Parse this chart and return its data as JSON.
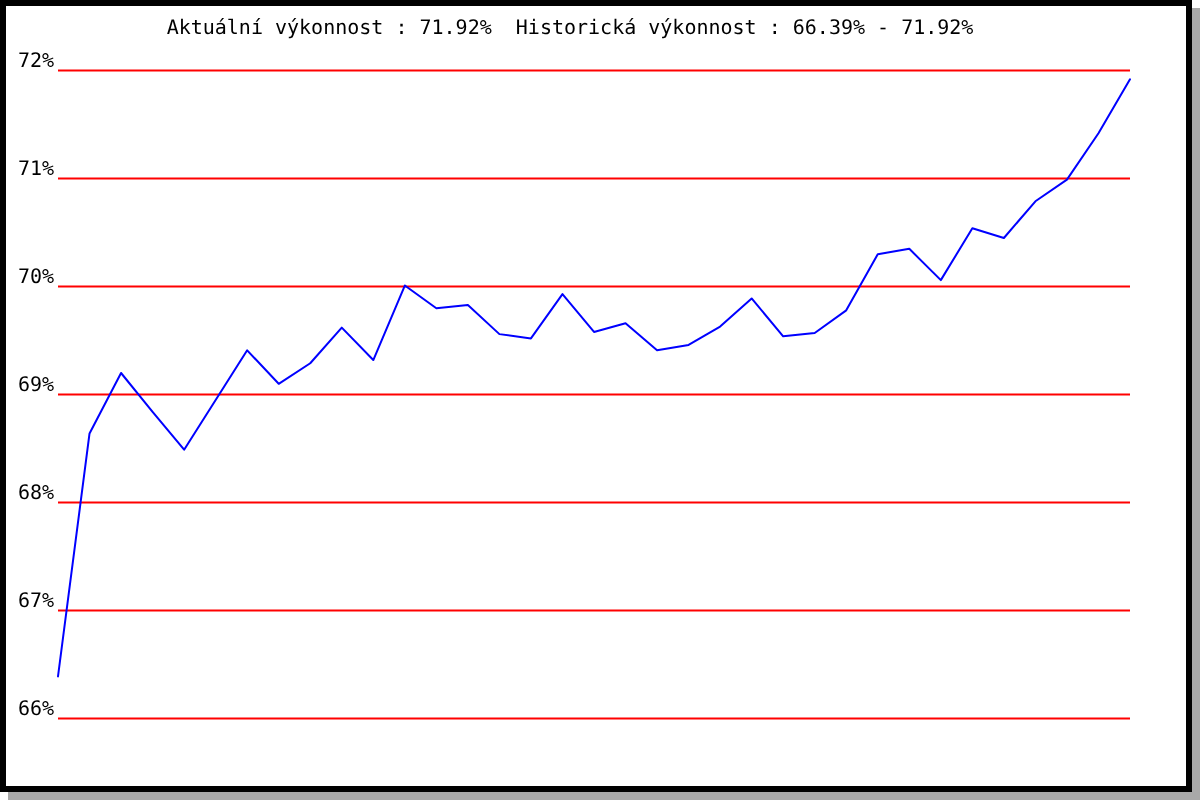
{
  "chart_data": {
    "type": "line",
    "title": "Aktuální výkonnost : 71.92%  Historická výkonnost : 66.39% - 71.92%",
    "categories": [
      null,
      null,
      null,
      null,
      null,
      null,
      null,
      null,
      null,
      null,
      null,
      null,
      null,
      null,
      null,
      null,
      null,
      null,
      null,
      null,
      null,
      null,
      null,
      null,
      null,
      null,
      null,
      null,
      null,
      null,
      null,
      null,
      null,
      null,
      null
    ],
    "series": [
      {
        "color": "#0000ff",
        "values": [
          66.39,
          68.64,
          69.2,
          68.84,
          68.49,
          68.95,
          69.41,
          69.1,
          69.29,
          69.62,
          69.32,
          70.01,
          69.8,
          69.83,
          69.56,
          69.52,
          69.93,
          69.58,
          69.66,
          69.41,
          69.46,
          69.63,
          69.89,
          69.54,
          69.57,
          69.78,
          70.3,
          70.35,
          70.06,
          70.54,
          70.45,
          70.79,
          70.99,
          71.42,
          71.92
        ]
      }
    ],
    "ylim": [
      66,
      72
    ],
    "yticks": [
      {
        "value": 66,
        "label": "66%"
      },
      {
        "value": 67,
        "label": "67%"
      },
      {
        "value": 68,
        "label": "68%"
      },
      {
        "value": 69,
        "label": "69%"
      },
      {
        "value": 70,
        "label": "70%"
      },
      {
        "value": 71,
        "label": "71%"
      },
      {
        "value": 72,
        "label": "72%"
      }
    ],
    "grid": "y",
    "tick_labels": "y"
  }
}
